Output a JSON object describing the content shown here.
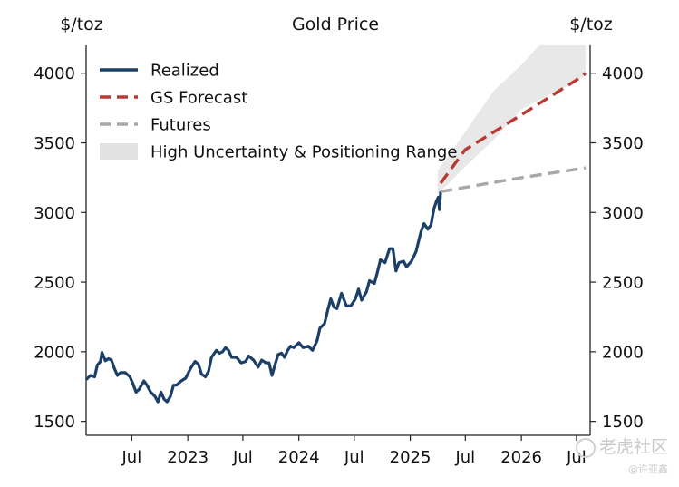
{
  "chart_data": {
    "type": "line",
    "title": "Gold Price",
    "ylabel_left": "$/toz",
    "ylabel_right": "$/toz",
    "ylim": [
      1400,
      4200
    ],
    "yticks": [
      1500,
      2000,
      2500,
      3000,
      3500,
      4000
    ],
    "xlim": [
      "2022-02-01",
      "2026-08-15"
    ],
    "xticks": [
      {
        "date": "2022-07-01",
        "label": "Jul"
      },
      {
        "date": "2023-01-01",
        "label": "2023"
      },
      {
        "date": "2023-07-01",
        "label": "Jul"
      },
      {
        "date": "2024-01-01",
        "label": "2024"
      },
      {
        "date": "2024-07-01",
        "label": "Jul"
      },
      {
        "date": "2025-01-01",
        "label": "2025"
      },
      {
        "date": "2025-07-01",
        "label": "Jul"
      },
      {
        "date": "2026-01-01",
        "label": "2026"
      },
      {
        "date": "2026-07-01",
        "label": "Jul"
      }
    ],
    "legend_position": "top-left",
    "legend": [
      "Realized",
      "GS Forecast",
      "Futures",
      "High Uncertainty & Positioning Range"
    ],
    "series": [
      {
        "name": "Realized",
        "style": "solid",
        "color": "#1b3f66",
        "points": [
          [
            "2022-02-01",
            1800
          ],
          [
            "2022-02-15",
            1830
          ],
          [
            "2022-03-01",
            1820
          ],
          [
            "2022-03-10",
            1905
          ],
          [
            "2022-03-20",
            1930
          ],
          [
            "2022-03-25",
            1995
          ],
          [
            "2022-04-05",
            1935
          ],
          [
            "2022-04-15",
            1950
          ],
          [
            "2022-04-25",
            1940
          ],
          [
            "2022-05-05",
            1880
          ],
          [
            "2022-05-15",
            1830
          ],
          [
            "2022-05-25",
            1850
          ],
          [
            "2022-06-10",
            1850
          ],
          [
            "2022-06-25",
            1820
          ],
          [
            "2022-07-05",
            1770
          ],
          [
            "2022-07-15",
            1710
          ],
          [
            "2022-07-25",
            1730
          ],
          [
            "2022-08-10",
            1790
          ],
          [
            "2022-08-20",
            1760
          ],
          [
            "2022-09-01",
            1710
          ],
          [
            "2022-09-15",
            1680
          ],
          [
            "2022-09-25",
            1640
          ],
          [
            "2022-10-05",
            1710
          ],
          [
            "2022-10-15",
            1660
          ],
          [
            "2022-10-25",
            1640
          ],
          [
            "2022-11-05",
            1680
          ],
          [
            "2022-11-15",
            1760
          ],
          [
            "2022-11-25",
            1760
          ],
          [
            "2022-12-10",
            1790
          ],
          [
            "2022-12-25",
            1810
          ],
          [
            "2023-01-10",
            1880
          ],
          [
            "2023-01-25",
            1930
          ],
          [
            "2023-02-05",
            1910
          ],
          [
            "2023-02-15",
            1840
          ],
          [
            "2023-02-28",
            1820
          ],
          [
            "2023-03-10",
            1860
          ],
          [
            "2023-03-20",
            1960
          ],
          [
            "2023-04-05",
            2010
          ],
          [
            "2023-04-15",
            1990
          ],
          [
            "2023-04-25",
            2000
          ],
          [
            "2023-05-05",
            2030
          ],
          [
            "2023-05-15",
            2010
          ],
          [
            "2023-05-25",
            1960
          ],
          [
            "2023-06-10",
            1960
          ],
          [
            "2023-06-25",
            1920
          ],
          [
            "2023-07-10",
            1930
          ],
          [
            "2023-07-20",
            1970
          ],
          [
            "2023-08-05",
            1940
          ],
          [
            "2023-08-20",
            1890
          ],
          [
            "2023-09-01",
            1940
          ],
          [
            "2023-09-15",
            1920
          ],
          [
            "2023-09-25",
            1920
          ],
          [
            "2023-10-05",
            1830
          ],
          [
            "2023-10-15",
            1910
          ],
          [
            "2023-10-25",
            1980
          ],
          [
            "2023-11-05",
            1990
          ],
          [
            "2023-11-15",
            1960
          ],
          [
            "2023-11-25",
            2010
          ],
          [
            "2023-12-05",
            2040
          ],
          [
            "2023-12-15",
            2030
          ],
          [
            "2024-01-01",
            2065
          ],
          [
            "2024-01-15",
            2030
          ],
          [
            "2024-02-01",
            2040
          ],
          [
            "2024-02-15",
            2010
          ],
          [
            "2024-03-01",
            2080
          ],
          [
            "2024-03-10",
            2170
          ],
          [
            "2024-03-25",
            2200
          ],
          [
            "2024-04-05",
            2300
          ],
          [
            "2024-04-15",
            2380
          ],
          [
            "2024-04-25",
            2320
          ],
          [
            "2024-05-05",
            2310
          ],
          [
            "2024-05-20",
            2420
          ],
          [
            "2024-06-05",
            2330
          ],
          [
            "2024-06-20",
            2330
          ],
          [
            "2024-07-05",
            2380
          ],
          [
            "2024-07-15",
            2450
          ],
          [
            "2024-07-25",
            2370
          ],
          [
            "2024-08-10",
            2430
          ],
          [
            "2024-08-20",
            2510
          ],
          [
            "2024-09-05",
            2490
          ],
          [
            "2024-09-15",
            2570
          ],
          [
            "2024-09-25",
            2660
          ],
          [
            "2024-10-10",
            2640
          ],
          [
            "2024-10-25",
            2740
          ],
          [
            "2024-11-05",
            2740
          ],
          [
            "2024-11-15",
            2580
          ],
          [
            "2024-11-25",
            2640
          ],
          [
            "2024-12-10",
            2650
          ],
          [
            "2024-12-20",
            2610
          ],
          [
            "2025-01-05",
            2650
          ],
          [
            "2025-01-20",
            2720
          ],
          [
            "2025-02-05",
            2860
          ],
          [
            "2025-02-15",
            2920
          ],
          [
            "2025-02-28",
            2880
          ],
          [
            "2025-03-10",
            2910
          ],
          [
            "2025-03-20",
            3030
          ],
          [
            "2025-03-28",
            3080
          ],
          [
            "2025-04-03",
            3110
          ],
          [
            "2025-04-07",
            3020
          ],
          [
            "2025-04-11",
            3150
          ]
        ]
      },
      {
        "name": "GS Forecast",
        "style": "dashed",
        "color": "#b83a35",
        "points": [
          [
            "2025-04-11",
            3210
          ],
          [
            "2025-06-30",
            3450
          ],
          [
            "2025-12-31",
            3700
          ],
          [
            "2026-06-30",
            3950
          ],
          [
            "2026-07-31",
            4000
          ]
        ]
      },
      {
        "name": "Futures",
        "style": "dashed",
        "color": "#a8a8a8",
        "points": [
          [
            "2025-04-11",
            3150
          ],
          [
            "2025-12-31",
            3250
          ],
          [
            "2026-07-31",
            3320
          ]
        ]
      }
    ],
    "band": {
      "name": "High Uncertainty & Positioning Range",
      "color": "#d6d6d6",
      "upper": [
        [
          "2025-04-01",
          3300
        ],
        [
          "2025-07-01",
          3580
        ],
        [
          "2025-10-01",
          3870
        ],
        [
          "2026-01-01",
          4060
        ],
        [
          "2026-03-01",
          4200
        ],
        [
          "2026-07-31",
          4200
        ]
      ],
      "lower": [
        [
          "2026-07-31",
          3980
        ],
        [
          "2026-01-01",
          3740
        ],
        [
          "2025-10-01",
          3520
        ],
        [
          "2025-07-01",
          3330
        ],
        [
          "2025-04-01",
          3130
        ]
      ]
    }
  },
  "watermark": {
    "brand": "老虎社区",
    "author": "@许亚鑫"
  }
}
